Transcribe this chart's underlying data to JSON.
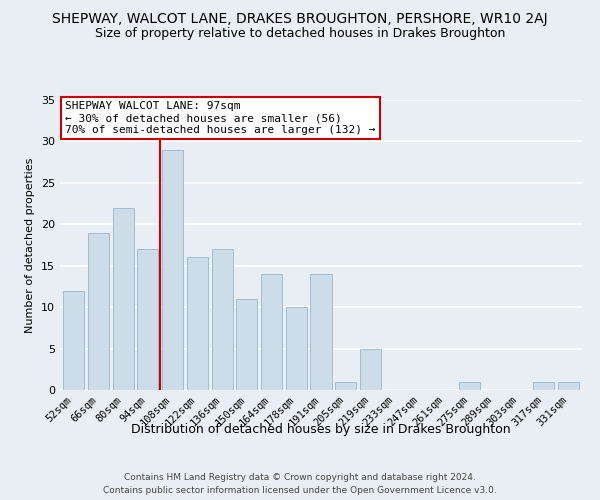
{
  "title": "SHEPWAY, WALCOT LANE, DRAKES BROUGHTON, PERSHORE, WR10 2AJ",
  "subtitle": "Size of property relative to detached houses in Drakes Broughton",
  "xlabel": "Distribution of detached houses by size in Drakes Broughton",
  "ylabel": "Number of detached properties",
  "footnote1": "Contains HM Land Registry data © Crown copyright and database right 2024.",
  "footnote2": "Contains public sector information licensed under the Open Government Licence v3.0.",
  "bar_labels": [
    "52sqm",
    "66sqm",
    "80sqm",
    "94sqm",
    "108sqm",
    "122sqm",
    "136sqm",
    "150sqm",
    "164sqm",
    "178sqm",
    "191sqm",
    "205sqm",
    "219sqm",
    "233sqm",
    "247sqm",
    "261sqm",
    "275sqm",
    "289sqm",
    "303sqm",
    "317sqm",
    "331sqm"
  ],
  "bar_values": [
    12,
    19,
    22,
    17,
    29,
    16,
    17,
    11,
    14,
    10,
    14,
    1,
    5,
    0,
    0,
    0,
    1,
    0,
    0,
    1,
    1
  ],
  "bar_color": "#ccdce8",
  "bar_edge_color": "#a0bdd0",
  "ylim": [
    0,
    35
  ],
  "yticks": [
    0,
    5,
    10,
    15,
    20,
    25,
    30,
    35
  ],
  "property_line_x": 3.5,
  "property_line_color": "#cc0000",
  "annotation_title": "SHEPWAY WALCOT LANE: 97sqm",
  "annotation_line1": "← 30% of detached houses are smaller (56)",
  "annotation_line2": "70% of semi-detached houses are larger (132) →",
  "annotation_box_color": "#ffffff",
  "annotation_box_edge": "#cc0000",
  "background_color": "#e8eef4",
  "grid_color": "#ffffff",
  "title_fontsize": 10,
  "subtitle_fontsize": 9,
  "xlabel_fontsize": 9,
  "ylabel_fontsize": 8,
  "tick_fontsize": 7.5,
  "footnote_fontsize": 6.5
}
